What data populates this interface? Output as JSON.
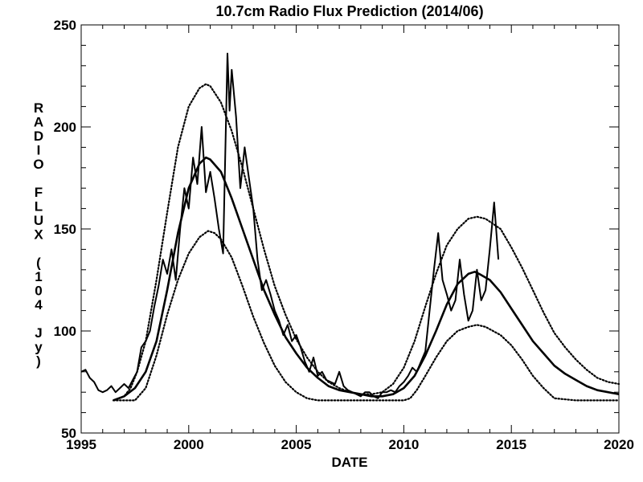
{
  "chart_data": {
    "type": "line",
    "title": "10.7cm Radio Flux Prediction (2014/06)",
    "xlabel": "DATE",
    "ylabel": "RADIO FLUX (104 Jy)",
    "xlim": [
      1995,
      2020
    ],
    "ylim": [
      50,
      250
    ],
    "xticks": [
      "1995",
      "2000",
      "2005",
      "2010",
      "2015",
      "2020"
    ],
    "yticks": [
      "50",
      "100",
      "150",
      "200",
      "250"
    ],
    "grid": false,
    "series": [
      {
        "style": "solid-thin",
        "x": [
          1995.0,
          1995.2,
          1995.4,
          1995.6,
          1995.8,
          1996.0,
          1996.2,
          1996.4,
          1996.6,
          1996.8,
          1997.0,
          1997.2,
          1997.4,
          1997.6,
          1997.8,
          1998.0,
          1998.2,
          1998.4,
          1998.6,
          1998.8,
          1999.0,
          1999.2,
          1999.4,
          1999.6,
          1999.8,
          2000.0,
          2000.2,
          2000.4,
          2000.6,
          2000.8,
          2001.0,
          2001.2,
          2001.4,
          2001.6,
          2001.8,
          2001.9,
          2002.0,
          2002.2,
          2002.4,
          2002.6,
          2002.8,
          2003.0,
          2003.2,
          2003.4,
          2003.6,
          2003.8,
          2004.0,
          2004.2,
          2004.4,
          2004.6,
          2004.8,
          2005.0,
          2005.2,
          2005.4,
          2005.6,
          2005.8,
          2006.0,
          2006.2,
          2006.4,
          2006.6,
          2006.8,
          2007.0,
          2007.2,
          2007.4,
          2007.6,
          2007.8,
          2008.0,
          2008.2,
          2008.4,
          2008.6,
          2008.8,
          2009.0,
          2009.2,
          2009.4,
          2009.6,
          2009.8,
          2010.0,
          2010.2,
          2010.4,
          2010.6,
          2010.8,
          2011.0,
          2011.2,
          2011.4,
          2011.6,
          2011.8,
          2012.0,
          2012.2,
          2012.4,
          2012.6,
          2012.8,
          2013.0,
          2013.2,
          2013.4,
          2013.6,
          2013.8,
          2014.0,
          2014.2,
          2014.4
        ],
        "y": [
          80,
          81,
          77,
          75,
          71,
          70,
          71,
          73,
          70,
          72,
          74,
          72,
          76,
          80,
          92,
          95,
          100,
          112,
          122,
          135,
          128,
          140,
          125,
          150,
          170,
          160,
          185,
          172,
          200,
          168,
          178,
          165,
          150,
          138,
          236,
          208,
          228,
          205,
          170,
          190,
          175,
          160,
          135,
          120,
          125,
          118,
          110,
          105,
          98,
          103,
          95,
          98,
          92,
          85,
          80,
          87,
          78,
          80,
          76,
          75,
          74,
          80,
          73,
          71,
          70,
          69,
          68,
          70,
          70,
          68,
          67,
          70,
          70,
          71,
          70,
          73,
          75,
          78,
          82,
          80,
          85,
          90,
          110,
          130,
          148,
          125,
          118,
          110,
          115,
          135,
          118,
          105,
          110,
          130,
          115,
          120,
          140,
          163,
          135
        ]
      },
      {
        "style": "solid-thick",
        "x": [
          1996.5,
          1997.0,
          1997.5,
          1998.0,
          1998.5,
          1999.0,
          1999.5,
          2000.0,
          2000.5,
          2000.8,
          2001.0,
          2001.5,
          2002.0,
          2002.5,
          2003.0,
          2003.5,
          2004.0,
          2004.5,
          2005.0,
          2005.5,
          2006.0,
          2006.5,
          2007.0,
          2007.5,
          2008.0,
          2008.5,
          2009.0,
          2009.5,
          2010.0,
          2010.5,
          2011.0,
          2011.5,
          2012.0,
          2012.5,
          2013.0,
          2013.3,
          2013.5,
          2014.0,
          2014.5,
          2015.0,
          2015.5,
          2016.0,
          2016.5,
          2017.0,
          2017.5,
          2018.0,
          2018.5,
          2019.0,
          2019.5,
          2020.0
        ],
        "y": [
          66,
          68,
          72,
          80,
          95,
          120,
          148,
          170,
          182,
          185,
          184,
          178,
          165,
          150,
          135,
          120,
          108,
          97,
          89,
          82,
          77,
          73,
          71,
          70,
          69,
          68,
          68,
          69,
          72,
          78,
          88,
          100,
          113,
          123,
          128,
          129,
          128,
          125,
          119,
          111,
          103,
          95,
          89,
          83,
          79,
          76,
          73,
          71,
          70,
          69
        ]
      },
      {
        "style": "dotted",
        "x": [
          1996.5,
          1997.0,
          1997.3,
          1997.6,
          1998.0,
          1998.5,
          1999.0,
          1999.5,
          2000.0,
          2000.5,
          2000.8,
          2001.0,
          2001.5,
          2002.0,
          2002.5,
          2003.0,
          2003.5,
          2004.0,
          2004.5,
          2005.0,
          2005.5,
          2006.0,
          2006.5,
          2007.0,
          2007.5,
          2008.0,
          2008.5,
          2009.0,
          2009.5,
          2010.0,
          2010.5,
          2011.0,
          2011.5,
          2012.0,
          2012.5,
          2013.0,
          2013.4,
          2013.8,
          2014.5,
          2015.0,
          2015.5,
          2016.0,
          2016.5,
          2017.0,
          2017.5,
          2018.0,
          2018.5,
          2019.0,
          2019.5,
          2020.0
        ],
        "y": [
          66,
          68,
          72,
          80,
          95,
          125,
          158,
          190,
          210,
          219,
          221,
          220,
          212,
          198,
          180,
          160,
          140,
          122,
          108,
          96,
          87,
          80,
          75,
          72,
          70,
          69,
          69,
          70,
          74,
          82,
          95,
          112,
          128,
          142,
          150,
          155,
          156,
          155,
          150,
          141,
          131,
          120,
          109,
          99,
          92,
          86,
          81,
          77,
          75,
          74
        ]
      },
      {
        "style": "dotted",
        "x": [
          1996.5,
          1997.0,
          1997.5,
          1998.0,
          1998.5,
          1999.0,
          1999.5,
          2000.0,
          2000.5,
          2000.9,
          2001.2,
          2001.5,
          2002.0,
          2002.5,
          2003.0,
          2003.5,
          2004.0,
          2004.5,
          2005.0,
          2005.5,
          2006.0,
          2006.5,
          2007.0,
          2008.0,
          2009.0,
          2010.0,
          2010.3,
          2010.6,
          2011.0,
          2011.5,
          2012.0,
          2012.5,
          2013.0,
          2013.4,
          2013.8,
          2014.5,
          2015.0,
          2015.5,
          2016.0,
          2016.5,
          2017.0,
          2018.0,
          2019.0,
          2020.0
        ],
        "y": [
          66,
          66,
          66,
          72,
          88,
          108,
          125,
          138,
          146,
          149,
          148,
          145,
          136,
          122,
          107,
          94,
          83,
          75,
          70,
          67,
          66,
          66,
          66,
          66,
          66,
          66,
          67,
          71,
          78,
          87,
          95,
          100,
          102,
          103,
          102,
          98,
          93,
          86,
          78,
          72,
          67,
          66,
          66,
          66
        ]
      }
    ]
  }
}
